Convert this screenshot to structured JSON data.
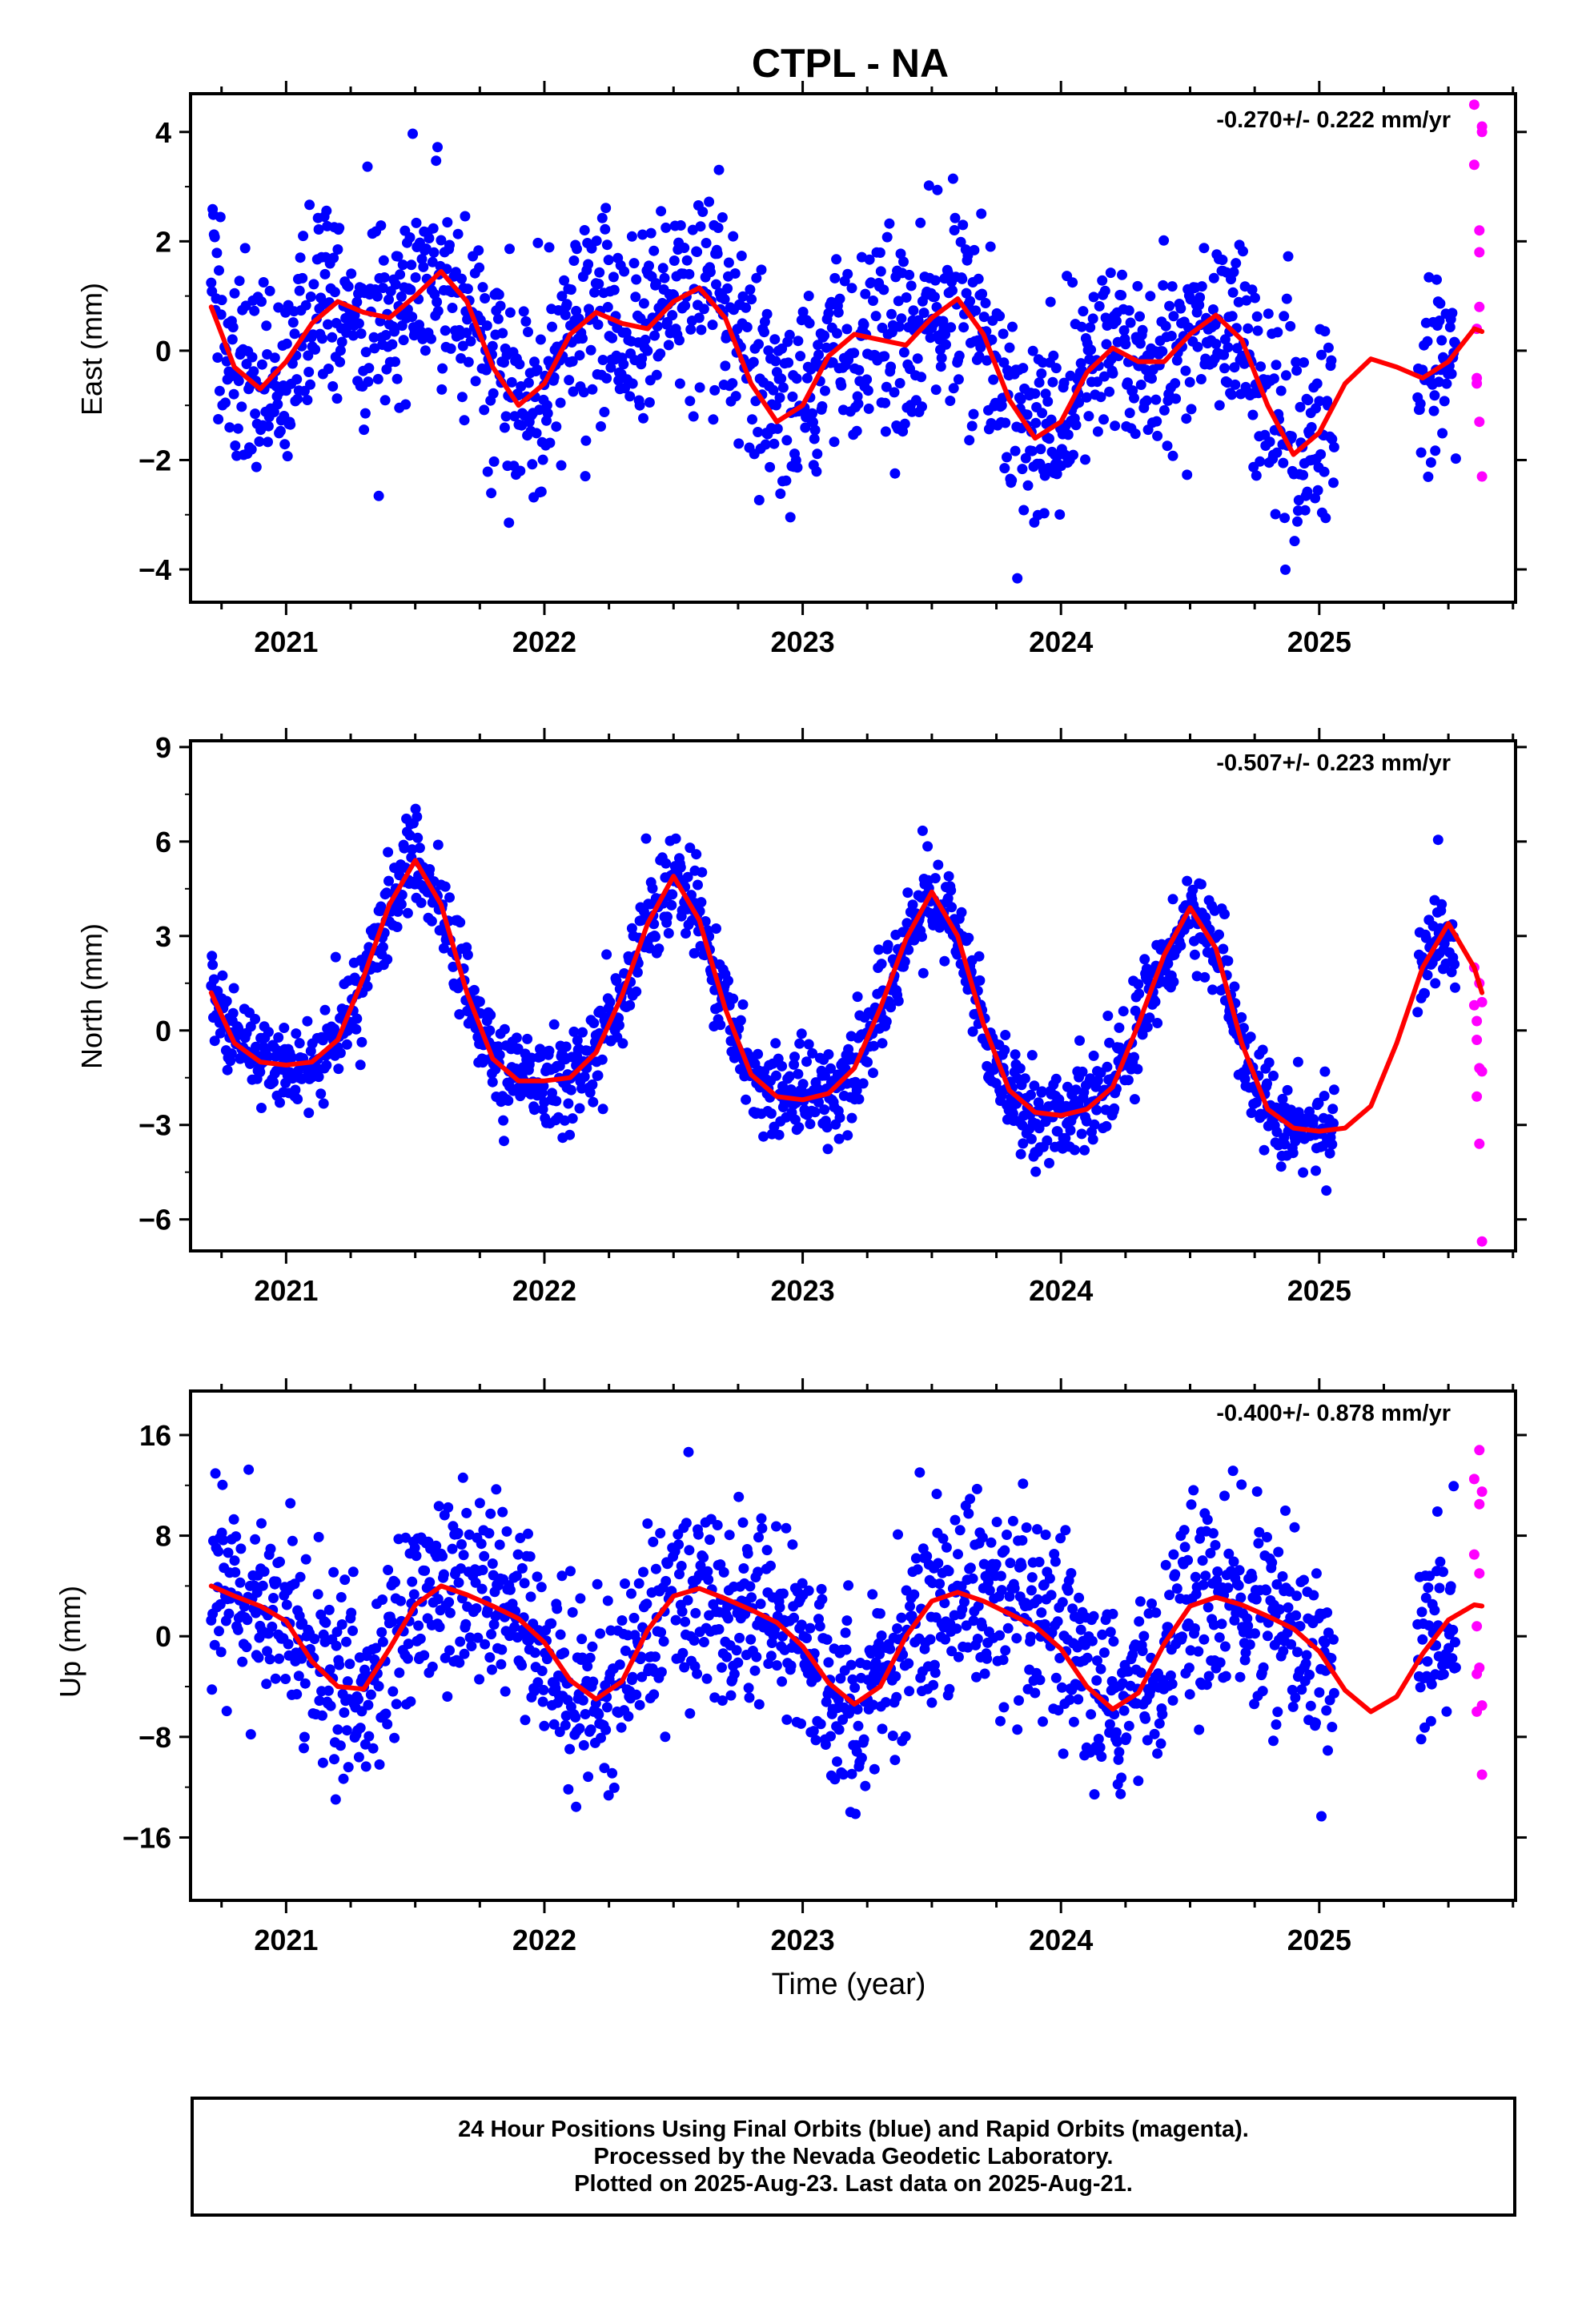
{
  "title": "CTPL - NA",
  "chart_data": [
    {
      "type": "scatter",
      "panel": "east",
      "ylabel": "East (mm)",
      "xlabel": "",
      "xlim": [
        2020.63,
        2025.76
      ],
      "ylim": [
        -4.6,
        4.7
      ],
      "yticks": [
        -4,
        -2,
        0,
        2,
        4
      ],
      "yticklabels": [
        "−4",
        "−2",
        "0",
        "2",
        "4"
      ],
      "xticks": [
        2021,
        2022,
        2023,
        2024,
        2025
      ],
      "xticklabels": [
        "2021",
        "2022",
        "2023",
        "2024",
        "2025"
      ],
      "rate_annotation": "-0.270+/- 0.222 mm/yr",
      "grid": false,
      "model": {
        "x": [
          2020.71,
          2020.8,
          2020.9,
          2021.0,
          2021.1,
          2021.2,
          2021.3,
          2021.4,
          2021.5,
          2021.6,
          2021.7,
          2021.8,
          2021.9,
          2022.0,
          2022.1,
          2022.2,
          2022.3,
          2022.4,
          2022.5,
          2022.6,
          2022.7,
          2022.8,
          2022.9,
          2023.0,
          2023.1,
          2023.2,
          2023.3,
          2023.4,
          2023.5,
          2023.6,
          2023.7,
          2023.8,
          2023.9,
          2024.0,
          2024.1,
          2024.2,
          2024.3,
          2024.4,
          2024.5,
          2024.6,
          2024.7,
          2024.8,
          2024.9,
          2025.0,
          2025.1,
          2025.2,
          2025.3,
          2025.4,
          2025.5,
          2025.6,
          2025.63
        ],
        "y": [
          0.8,
          -0.3,
          -0.7,
          -0.2,
          0.5,
          0.9,
          0.7,
          0.6,
          1.0,
          1.45,
          0.9,
          -0.3,
          -1.0,
          -0.6,
          0.3,
          0.7,
          0.5,
          0.4,
          0.9,
          1.15,
          0.6,
          -0.6,
          -1.3,
          -1.0,
          -0.1,
          0.3,
          0.2,
          0.1,
          0.6,
          0.95,
          0.3,
          -0.9,
          -1.6,
          -1.3,
          -0.4,
          0.05,
          -0.2,
          -0.2,
          0.3,
          0.65,
          0.2,
          -1.0,
          -1.9,
          -1.5,
          -0.6,
          -0.15,
          -0.3,
          -0.5,
          -0.2,
          0.4,
          0.35
        ]
      },
      "series": [
        {
          "name": "Final Orbits",
          "color": "#0000ff",
          "x_range": [
            2020.71,
            2025.53
          ],
          "noise_sd": 0.9
        },
        {
          "name": "Rapid Orbits",
          "color": "#ff00ff",
          "x": [
            2025.6,
            2025.6,
            2025.61,
            2025.61,
            2025.61,
            2025.62,
            2025.62,
            2025.62,
            2025.62,
            2025.63,
            2025.63,
            2025.63
          ],
          "y": [
            4.5,
            3.4,
            -0.5,
            0.4,
            -0.6,
            2.2,
            1.8,
            0.8,
            -1.3,
            4.1,
            4.0,
            -2.3
          ]
        }
      ]
    },
    {
      "type": "scatter",
      "panel": "north",
      "ylabel": "North (mm)",
      "xlabel": "",
      "xlim": [
        2020.63,
        2025.76
      ],
      "ylim": [
        -7.0,
        9.2
      ],
      "yticks": [
        -6,
        -3,
        0,
        3,
        6,
        9
      ],
      "yticklabels": [
        "−6",
        "−3",
        "0",
        "3",
        "6",
        "9"
      ],
      "xticks": [
        2021,
        2022,
        2023,
        2024,
        2025
      ],
      "xticklabels": [
        "2021",
        "2022",
        "2023",
        "2024",
        "2025"
      ],
      "rate_annotation": "-0.507+/- 0.223 mm/yr",
      "grid": false,
      "model": {
        "x": [
          2020.71,
          2020.8,
          2020.9,
          2021.0,
          2021.1,
          2021.2,
          2021.3,
          2021.4,
          2021.5,
          2021.6,
          2021.7,
          2021.8,
          2021.9,
          2022.0,
          2022.1,
          2022.2,
          2022.3,
          2022.4,
          2022.5,
          2022.6,
          2022.7,
          2022.8,
          2022.9,
          2023.0,
          2023.1,
          2023.2,
          2023.3,
          2023.4,
          2023.5,
          2023.6,
          2023.7,
          2023.8,
          2023.9,
          2024.0,
          2024.1,
          2024.2,
          2024.3,
          2024.4,
          2024.5,
          2024.6,
          2024.7,
          2024.8,
          2024.9,
          2025.0,
          2025.1,
          2025.2,
          2025.3,
          2025.4,
          2025.5,
          2025.6,
          2025.63
        ],
        "y": [
          1.2,
          -0.4,
          -1.0,
          -1.1,
          -1.0,
          -0.3,
          1.7,
          4.0,
          5.4,
          4.0,
          1.2,
          -0.9,
          -1.6,
          -1.6,
          -1.5,
          -0.7,
          1.1,
          3.4,
          4.9,
          3.5,
          0.7,
          -1.4,
          -2.1,
          -2.2,
          -2.0,
          -1.2,
          0.7,
          2.9,
          4.4,
          3.0,
          0.2,
          -1.9,
          -2.6,
          -2.7,
          -2.5,
          -1.8,
          0.2,
          2.4,
          3.9,
          2.6,
          -0.4,
          -2.5,
          -3.1,
          -3.2,
          -3.1,
          -2.4,
          -0.4,
          2.0,
          3.4,
          2.0,
          1.2
        ]
      },
      "series": [
        {
          "name": "Final Orbits",
          "color": "#0000ff",
          "x_range": [
            2020.71,
            2025.53
          ],
          "noise_sd": 0.75
        },
        {
          "name": "Rapid Orbits",
          "color": "#ff00ff",
          "x": [
            2025.6,
            2025.6,
            2025.61,
            2025.61,
            2025.61,
            2025.62,
            2025.62,
            2025.62,
            2025.63,
            2025.63,
            2025.63
          ],
          "y": [
            2.0,
            0.8,
            0.3,
            -0.3,
            -2.1,
            1.5,
            -1.2,
            -3.6,
            0.9,
            -1.3,
            -6.7
          ]
        }
      ]
    },
    {
      "type": "scatter",
      "panel": "up",
      "ylabel": "Up (mm)",
      "xlabel": "Time (year)",
      "xlim": [
        2020.63,
        2025.76
      ],
      "ylim": [
        -21.0,
        19.5
      ],
      "yticks": [
        -16,
        -8,
        0,
        8,
        16
      ],
      "yticklabels": [
        "−16",
        "−8",
        "0",
        "8",
        "16"
      ],
      "xticks": [
        2021,
        2022,
        2023,
        2024,
        2025
      ],
      "xticklabels": [
        "2021",
        "2022",
        "2023",
        "2024",
        "2025"
      ],
      "rate_annotation": "-0.400+/- 0.878 mm/yr",
      "grid": false,
      "model": {
        "x": [
          2020.71,
          2020.8,
          2020.9,
          2021.0,
          2021.1,
          2021.2,
          2021.3,
          2021.4,
          2021.5,
          2021.6,
          2021.7,
          2021.8,
          2021.9,
          2022.0,
          2022.1,
          2022.2,
          2022.3,
          2022.4,
          2022.5,
          2022.6,
          2022.7,
          2022.8,
          2022.9,
          2023.0,
          2023.1,
          2023.2,
          2023.3,
          2023.4,
          2023.5,
          2023.6,
          2023.7,
          2023.8,
          2023.9,
          2024.0,
          2024.1,
          2024.2,
          2024.3,
          2024.4,
          2024.5,
          2024.6,
          2024.7,
          2024.8,
          2024.9,
          2025.0,
          2025.1,
          2025.2,
          2025.3,
          2025.4,
          2025.5,
          2025.6,
          2025.63
        ],
        "y": [
          4.0,
          3.2,
          2.4,
          1.2,
          -2.0,
          -4.0,
          -4.2,
          -1.0,
          2.5,
          4.0,
          3.3,
          2.4,
          1.4,
          -0.5,
          -3.5,
          -5.0,
          -3.6,
          0.5,
          3.2,
          3.8,
          3.0,
          2.1,
          1.1,
          -0.8,
          -3.7,
          -5.4,
          -4.0,
          0.0,
          2.8,
          3.5,
          2.8,
          1.8,
          0.8,
          -1.0,
          -4.0,
          -5.8,
          -4.5,
          -0.6,
          2.4,
          3.1,
          2.5,
          1.6,
          0.6,
          -1.2,
          -4.3,
          -6.0,
          -4.8,
          -1.4,
          1.3,
          2.5,
          2.4
        ]
      },
      "series": [
        {
          "name": "Final Orbits",
          "color": "#0000ff",
          "x_range": [
            2020.71,
            2025.53
          ],
          "noise_sd": 3.8
        },
        {
          "name": "Rapid Orbits",
          "color": "#ff00ff",
          "x": [
            2025.6,
            2025.6,
            2025.61,
            2025.61,
            2025.61,
            2025.62,
            2025.62,
            2025.62,
            2025.62,
            2025.63,
            2025.63,
            2025.63
          ],
          "y": [
            12.5,
            6.5,
            0.8,
            -3.0,
            -6.0,
            14.8,
            10.5,
            5.0,
            -2.5,
            11.5,
            -5.5,
            -11.0
          ]
        }
      ]
    }
  ],
  "notes": {
    "line1": "24 Hour Positions Using Final Orbits (blue) and Rapid Orbits (magenta).",
    "line2": "Processed by the Nevada Geodetic Laboratory.",
    "line3": "Plotted on 2025-Aug-23. Last data on 2025-Aug-21."
  },
  "colors": {
    "final": "#0000ff",
    "rapid": "#ff00ff",
    "model": "#ff0000",
    "frame": "#000000"
  }
}
